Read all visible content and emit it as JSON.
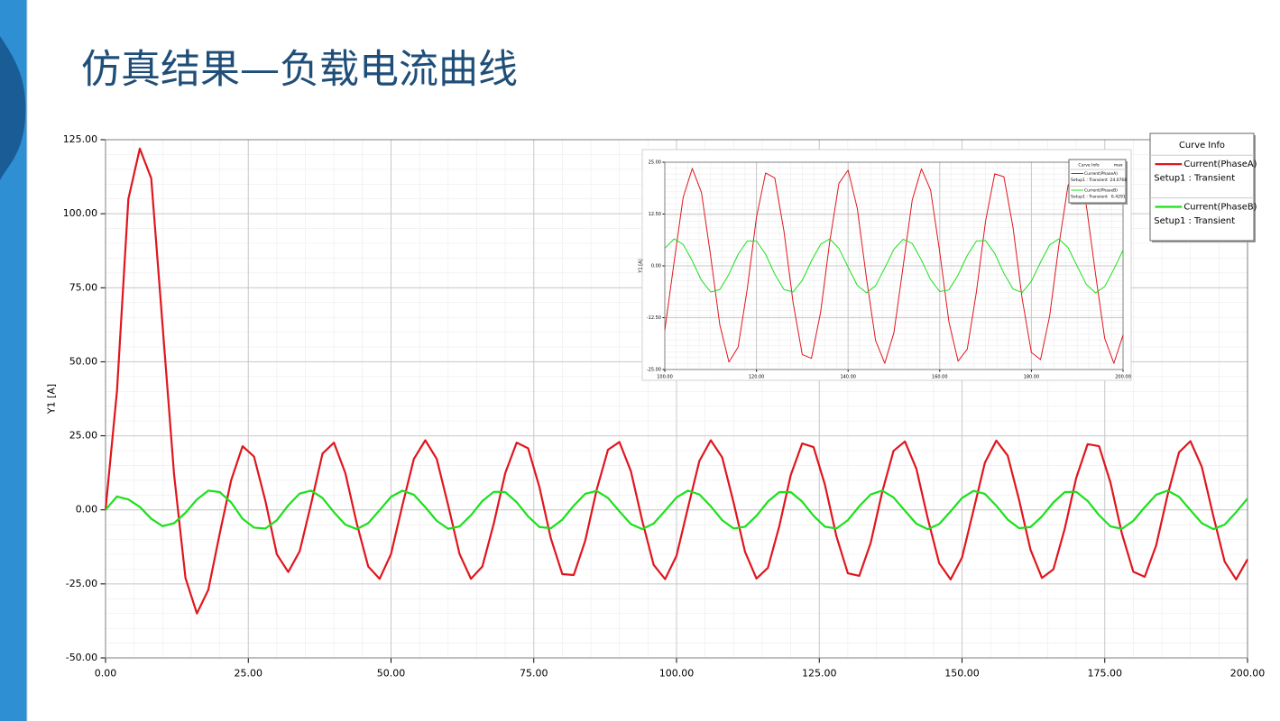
{
  "title": "仿真结果—负载电流曲线",
  "chart_data": [
    {
      "type": "line",
      "ylabel": "Y1 [A]",
      "legend_title": "Curve Info",
      "grid": true,
      "xlim": [
        0,
        200
      ],
      "ylim": [
        -50,
        125
      ],
      "xticks": [
        {
          "value": 0,
          "label": "0.00"
        },
        {
          "value": 25,
          "label": "25.00"
        },
        {
          "value": 50,
          "label": "50.00"
        },
        {
          "value": 75,
          "label": "75.00"
        },
        {
          "value": 100,
          "label": "100.00"
        },
        {
          "value": 125,
          "label": "125.00"
        },
        {
          "value": 150,
          "label": "150.00"
        },
        {
          "value": 175,
          "label": "175.00"
        },
        {
          "value": 200,
          "label": "200.00"
        }
      ],
      "yticks": [
        {
          "value": -50,
          "label": "-50.00"
        },
        {
          "value": -25,
          "label": "-25.00"
        },
        {
          "value": 0,
          "label": "0.00"
        },
        {
          "value": 25,
          "label": "25.00"
        },
        {
          "value": 50,
          "label": "50.00"
        },
        {
          "value": 75,
          "label": "75.00"
        },
        {
          "value": 100,
          "label": "100.00"
        },
        {
          "value": 125,
          "label": "125.00"
        }
      ],
      "x": [
        0,
        2,
        4,
        6,
        8,
        10,
        12,
        14,
        16,
        18,
        20,
        22,
        24,
        26,
        28,
        30,
        32,
        34,
        36,
        38,
        40,
        42,
        44,
        46,
        48,
        50,
        52,
        54,
        56,
        58,
        60,
        62,
        64,
        66,
        68,
        70,
        72,
        74,
        76,
        78,
        80,
        82,
        84,
        86,
        88,
        90,
        92,
        94,
        96,
        98,
        100,
        102,
        104,
        106,
        108,
        110,
        112,
        114,
        116,
        118,
        120,
        122,
        124,
        126,
        128,
        130,
        132,
        134,
        136,
        138,
        140,
        142,
        144,
        146,
        148,
        150,
        152,
        154,
        156,
        158,
        160,
        162,
        164,
        166,
        168,
        170,
        172,
        174,
        176,
        178,
        180,
        182,
        184,
        186,
        188,
        190,
        192,
        194,
        196,
        198,
        200
      ],
      "series": [
        {
          "name": "Current(PhaseA)",
          "setup": "Setup1 : Transient",
          "color": "#e0161e",
          "values": [
            0,
            40,
            105,
            122,
            112,
            62,
            12,
            -23,
            -35,
            -27,
            -8,
            10,
            21.5,
            18,
            3,
            -15,
            -21,
            -14,
            2,
            19,
            22.7,
            12.4,
            -4.6,
            -19.1,
            -23.3,
            -14.9,
            1.6,
            17.2,
            23.5,
            17.2,
            1.6,
            -14.9,
            -23.3,
            -19.1,
            -4.6,
            12.4,
            22.7,
            20.8,
            7.6,
            -9.7,
            -21.7,
            -22.0,
            -10.5,
            6.7,
            20.3,
            22.9,
            13.1,
            -3.7,
            -18.6,
            -23.4,
            -15.5,
            0.7,
            16.5,
            23.5,
            17.7,
            2.4,
            -14.2,
            -23.2,
            -19.6,
            -5.5,
            11.7,
            22.4,
            21.2,
            8.4,
            -8.9,
            -21.4,
            -22.3,
            -11.2,
            5.9,
            19.9,
            23.1,
            13.9,
            -2.9,
            -18.0,
            -23.5,
            -16.1,
            -0.2,
            15.9,
            23.4,
            18.3,
            3.3,
            -13.5,
            -23.0,
            -20.1,
            -6.3,
            10.8,
            22.2,
            21.5,
            9.2,
            -8.0,
            -20.9,
            -22.6,
            -12.0,
            5.0,
            19.4,
            23.2,
            14.5,
            -2.0,
            -17.5,
            -23.5,
            -16.7
          ]
        },
        {
          "name": "Current(PhaseB)",
          "setup": "Setup1 : Transient",
          "color": "#1be01b",
          "values": [
            0,
            4.5,
            3.5,
            1,
            -3,
            -5.5,
            -4.5,
            -1,
            3.5,
            6.5,
            6,
            2.5,
            -3,
            -6,
            -6.3,
            -3.5,
            1.5,
            5.5,
            6.5,
            4,
            -0.8,
            -5.0,
            -6.5,
            -4.5,
            -0.1,
            4.4,
            6.5,
            5.1,
            0.9,
            -3.7,
            -6.4,
            -5.6,
            -1.8,
            3.0,
            6.1,
            6.0,
            2.6,
            -2.2,
            -5.8,
            -6.2,
            -3.3,
            1.4,
            5.4,
            6.4,
            4.0,
            -0.5,
            -4.8,
            -6.5,
            -4.6,
            -0.3,
            4.2,
            6.5,
            5.2,
            1.2,
            -3.5,
            -6.3,
            -5.7,
            -2.0,
            2.8,
            6.0,
            6.0,
            2.8,
            -2.0,
            -5.7,
            -6.3,
            -3.5,
            1.2,
            5.2,
            6.5,
            4.2,
            -0.3,
            -4.7,
            -6.5,
            -4.8,
            -0.5,
            4.0,
            6.4,
            5.4,
            1.4,
            -3.3,
            -6.2,
            -5.8,
            -2.2,
            2.5,
            6.0,
            6.1,
            3.0,
            -1.8,
            -5.6,
            -6.4,
            -3.7,
            0.9,
            5.1,
            6.5,
            4.4,
            -0.1,
            -4.5,
            -6.5,
            -5.0,
            -0.8,
            3.8
          ]
        }
      ]
    },
    {
      "type": "line",
      "ylabel": "Y1 [A]",
      "legend_title": "Curve Info",
      "legend_value_title": "max",
      "grid": true,
      "xlim": [
        100,
        200
      ],
      "ylim": [
        -25,
        25
      ],
      "xticks": [
        {
          "value": 100,
          "label": "100.00"
        },
        {
          "value": 120,
          "label": "120.00"
        },
        {
          "value": 140,
          "label": "140.00"
        },
        {
          "value": 160,
          "label": "160.00"
        },
        {
          "value": 180,
          "label": "180.00"
        },
        {
          "value": 200,
          "label": "200.00"
        }
      ],
      "yticks": [
        {
          "value": -25,
          "label": "-25.00"
        },
        {
          "value": -12.5,
          "label": "-12.50"
        },
        {
          "value": 0,
          "label": "0.00"
        },
        {
          "value": 12.5,
          "label": "12.50"
        },
        {
          "value": 25,
          "label": "25.00"
        }
      ],
      "x": [
        100,
        102,
        104,
        106,
        108,
        110,
        112,
        114,
        116,
        118,
        120,
        122,
        124,
        126,
        128,
        130,
        132,
        134,
        136,
        138,
        140,
        142,
        144,
        146,
        148,
        150,
        152,
        154,
        156,
        158,
        160,
        162,
        164,
        166,
        168,
        170,
        172,
        174,
        176,
        178,
        180,
        182,
        184,
        186,
        188,
        190,
        192,
        194,
        196,
        198,
        200
      ],
      "series": [
        {
          "name": "Current(PhaseA)",
          "setup": "Setup1 : Transient",
          "max": 24.0768,
          "color": "#e0161e",
          "values": [
            -15.5,
            0.7,
            16.5,
            23.5,
            17.7,
            2.4,
            -14.2,
            -23.2,
            -19.6,
            -5.5,
            11.7,
            22.4,
            21.2,
            8.4,
            -8.9,
            -21.4,
            -22.3,
            -11.2,
            5.9,
            19.9,
            23.1,
            13.9,
            -2.9,
            -18.0,
            -23.5,
            -16.1,
            -0.2,
            15.9,
            23.4,
            18.3,
            3.3,
            -13.5,
            -23.0,
            -20.1,
            -6.3,
            10.8,
            22.2,
            21.5,
            9.2,
            -8.0,
            -20.9,
            -22.6,
            -12.0,
            5.0,
            19.4,
            23.2,
            14.5,
            -2.0,
            -17.5,
            -23.5,
            -16.7
          ]
        },
        {
          "name": "Current(PhaseB)",
          "setup": "Setup1 : Transient",
          "max": 6.4291,
          "color": "#1be01b",
          "values": [
            4.2,
            6.5,
            5.2,
            1.2,
            -3.5,
            -6.3,
            -5.7,
            -2.0,
            2.8,
            6.0,
            6.0,
            2.8,
            -2.0,
            -5.7,
            -6.3,
            -3.5,
            1.2,
            5.2,
            6.5,
            4.2,
            -0.3,
            -4.7,
            -6.5,
            -4.8,
            -0.5,
            4.0,
            6.4,
            5.4,
            1.4,
            -3.3,
            -6.2,
            -5.8,
            -2.2,
            2.5,
            6.0,
            6.1,
            3.0,
            -1.8,
            -5.6,
            -6.4,
            -3.7,
            0.9,
            5.1,
            6.5,
            4.4,
            -0.1,
            -4.5,
            -6.5,
            -5.0,
            -0.8,
            3.8
          ]
        }
      ]
    }
  ]
}
